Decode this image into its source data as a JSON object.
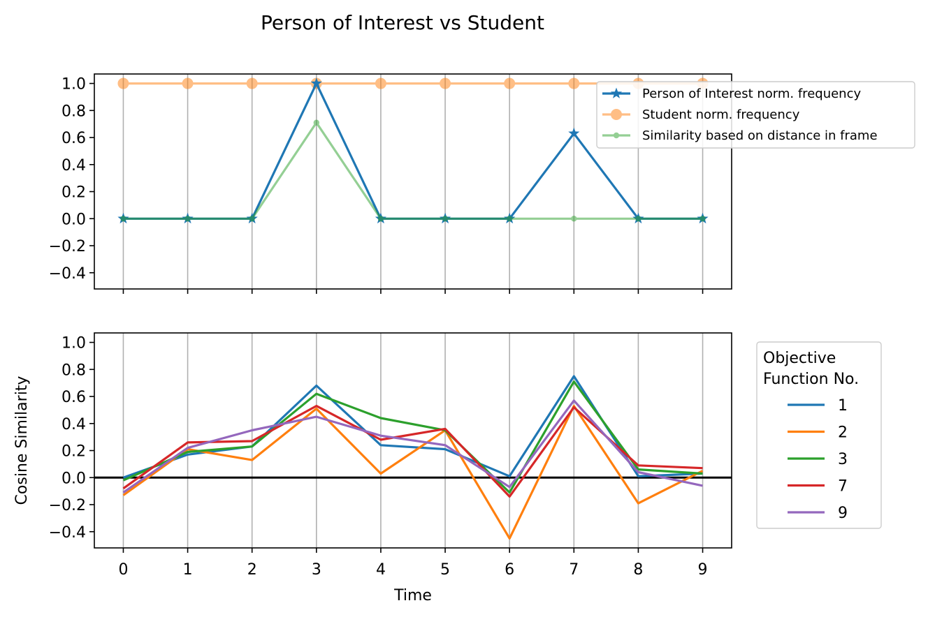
{
  "chart_data": [
    {
      "type": "line",
      "title": "Person of Interest vs Student",
      "x": [
        0,
        1,
        2,
        3,
        4,
        5,
        6,
        7,
        8,
        9
      ],
      "ylim": [
        -0.52,
        1.07
      ],
      "yticks": [
        "1.0",
        "0.8",
        "0.6",
        "0.4",
        "0.2",
        "0.0",
        "−0.2",
        "−0.4"
      ],
      "ytick_values": [
        1.0,
        0.8,
        0.6,
        0.4,
        0.2,
        0.0,
        -0.2,
        -0.4
      ],
      "grid": "vertical",
      "legend_position": "top-right",
      "series": [
        {
          "name": "Person of Interest norm. frequency",
          "color": "#1f77b4",
          "marker": "star",
          "values": [
            0,
            0,
            0,
            1.0,
            0,
            0,
            0,
            0.63,
            0,
            0
          ]
        },
        {
          "name": "Student norm. frequency",
          "color": "#ff7f0e",
          "marker": "circle",
          "opacity": 0.5,
          "values": [
            1,
            1,
            1,
            1,
            1,
            1,
            1,
            1,
            1,
            1
          ]
        },
        {
          "name": "Similarity based on distance in frame",
          "color": "#2ca02c",
          "marker": "dot",
          "opacity": 0.5,
          "values": [
            0,
            0,
            0,
            0.71,
            0,
            0,
            0,
            0,
            0,
            0
          ]
        }
      ]
    },
    {
      "type": "line",
      "xlabel": "Time",
      "ylabel": "Cosine Similarity",
      "x": [
        0,
        1,
        2,
        3,
        4,
        5,
        6,
        7,
        8,
        9
      ],
      "xticks": [
        "0",
        "1",
        "2",
        "3",
        "4",
        "5",
        "6",
        "7",
        "8",
        "9"
      ],
      "ylim": [
        -0.52,
        1.07
      ],
      "yticks": [
        "1.0",
        "0.8",
        "0.6",
        "0.4",
        "0.2",
        "0.0",
        "−0.2",
        "−0.4"
      ],
      "ytick_values": [
        1.0,
        0.8,
        0.6,
        0.4,
        0.2,
        0.0,
        -0.2,
        -0.4
      ],
      "grid": "vertical",
      "reference_line": 0,
      "legend_position": "outside-right",
      "legend_title": "Objective\nFunction No.",
      "legend_title_lines": [
        "Objective",
        "Function No."
      ],
      "series": [
        {
          "name": "1",
          "color": "#1f77b4",
          "values": [
            0.0,
            0.17,
            0.23,
            0.68,
            0.24,
            0.21,
            0.01,
            0.75,
            0.01,
            0.03
          ]
        },
        {
          "name": "2",
          "color": "#ff7f0e",
          "values": [
            -0.13,
            0.21,
            0.13,
            0.51,
            0.03,
            0.35,
            -0.45,
            0.53,
            -0.19,
            0.05
          ]
        },
        {
          "name": "3",
          "color": "#2ca02c",
          "values": [
            -0.02,
            0.19,
            0.23,
            0.62,
            0.44,
            0.35,
            -0.11,
            0.71,
            0.06,
            0.03
          ]
        },
        {
          "name": "7",
          "color": "#d62728",
          "values": [
            -0.08,
            0.26,
            0.27,
            0.53,
            0.28,
            0.36,
            -0.14,
            0.52,
            0.09,
            0.07
          ]
        },
        {
          "name": "9",
          "color": "#9467bd",
          "values": [
            -0.11,
            0.22,
            0.35,
            0.45,
            0.31,
            0.24,
            -0.07,
            0.57,
            0.04,
            -0.06
          ]
        }
      ]
    }
  ]
}
